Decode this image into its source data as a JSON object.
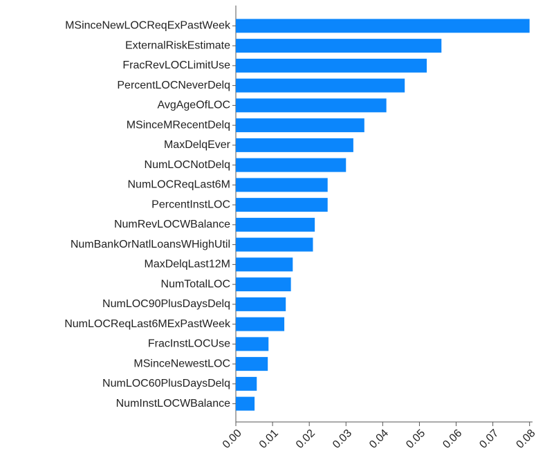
{
  "chart_data": {
    "type": "barh",
    "categories": [
      "MSinceNewLOCReqExPastWeek",
      "ExternalRiskEstimate",
      "FracRevLOCLimitUse",
      "PercentLOCNeverDelq",
      "AvgAgeOfLOC",
      "MSinceMRecentDelq",
      "MaxDelqEver",
      "NumLOCNotDelq",
      "NumLOCReqLast6M",
      "PercentInstLOC",
      "NumRevLOCWBalance",
      "NumBankOrNatlLoansWHighUtil",
      "MaxDelqLast12M",
      "NumTotalLOC",
      "NumLOC90PlusDaysDelq",
      "NumLOCReqLast6MExPastWeek",
      "FracInstLOCUse",
      "MSinceNewestLOC",
      "NumLOC60PlusDaysDelq",
      "NumInstLOCWBalance"
    ],
    "values": [
      0.08,
      0.056,
      0.052,
      0.046,
      0.041,
      0.035,
      0.032,
      0.03,
      0.025,
      0.025,
      0.0215,
      0.021,
      0.0155,
      0.015,
      0.0136,
      0.0132,
      0.0089,
      0.0087,
      0.0057,
      0.0051
    ],
    "color": "#0b86fc",
    "xlim": [
      0,
      0.081
    ],
    "xticks": [
      {
        "value": 0,
        "label": "0.00"
      },
      {
        "value": 0.01,
        "label": "0.01"
      },
      {
        "value": 0.02,
        "label": "0.02"
      },
      {
        "value": 0.03,
        "label": "0.03"
      },
      {
        "value": 0.04,
        "label": "0.04"
      },
      {
        "value": 0.05,
        "label": "0.05"
      },
      {
        "value": 0.06,
        "label": "0.06"
      },
      {
        "value": 0.07,
        "label": "0.07"
      },
      {
        "value": 0.08,
        "label": "0.08"
      }
    ],
    "grid": false
  }
}
